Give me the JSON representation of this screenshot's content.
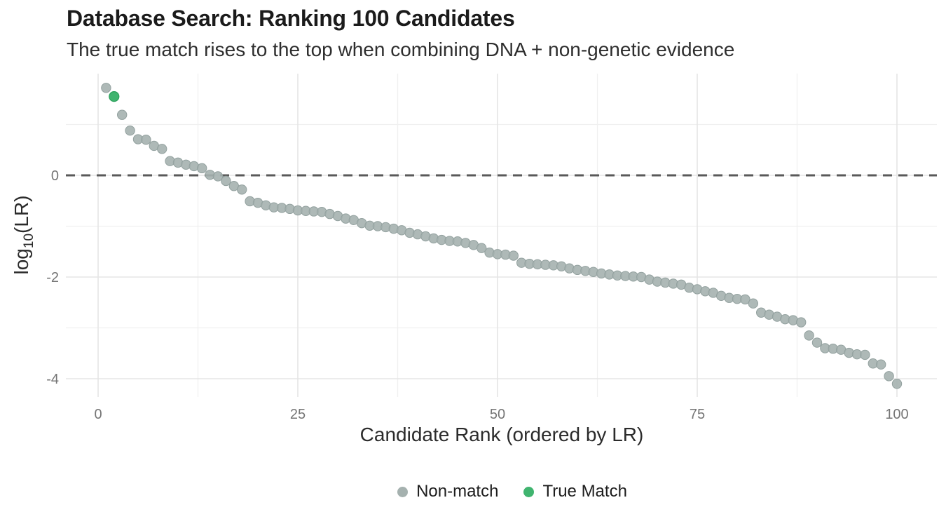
{
  "header": {
    "title": "Database Search: Ranking 100 Candidates",
    "subtitle": "The true match rises to the top when combining DNA + non-genetic evidence"
  },
  "chart_data": {
    "type": "scatter",
    "title": "Database Search: Ranking 100 Candidates",
    "subtitle": "The true match rises to the top when combining DNA + non-genetic evidence",
    "xlabel": "Candidate Rank (ordered by LR)",
    "ylabel": "log10(LR)",
    "ylabel_parts": {
      "base": "log",
      "sub": "10",
      "rest": "(LR)"
    },
    "x": {
      "start": 1,
      "end": 100,
      "step": 1
    },
    "xlim": [
      -4,
      105
    ],
    "ylim": [
      -4.36,
      2.0
    ],
    "x_ticks": [
      0,
      25,
      50,
      75,
      100
    ],
    "y_ticks": [
      0,
      -2,
      -4
    ],
    "x_minor_gridlines": [
      12.5,
      37.5,
      62.5,
      87.5
    ],
    "y_minor_gridlines": [
      1,
      -1,
      -3
    ],
    "grid": true,
    "reference_line_y": 0,
    "legend_position": "bottom-center",
    "y_values": [
      1.72,
      1.55,
      1.19,
      0.88,
      0.71,
      0.7,
      0.58,
      0.52,
      0.28,
      0.25,
      0.21,
      0.18,
      0.14,
      0.01,
      -0.02,
      -0.11,
      -0.21,
      -0.28,
      -0.51,
      -0.54,
      -0.59,
      -0.63,
      -0.64,
      -0.66,
      -0.69,
      -0.7,
      -0.71,
      -0.72,
      -0.76,
      -0.8,
      -0.85,
      -0.88,
      -0.94,
      -0.99,
      -1.0,
      -1.02,
      -1.05,
      -1.08,
      -1.13,
      -1.16,
      -1.2,
      -1.24,
      -1.27,
      -1.29,
      -1.3,
      -1.33,
      -1.37,
      -1.43,
      -1.52,
      -1.55,
      -1.56,
      -1.58,
      -1.72,
      -1.74,
      -1.75,
      -1.76,
      -1.77,
      -1.79,
      -1.83,
      -1.86,
      -1.88,
      -1.9,
      -1.93,
      -1.95,
      -1.97,
      -1.98,
      -1.99,
      -2.0,
      -2.05,
      -2.09,
      -2.11,
      -2.13,
      -2.15,
      -2.21,
      -2.24,
      -2.28,
      -2.31,
      -2.37,
      -2.41,
      -2.43,
      -2.44,
      -2.52,
      -2.7,
      -2.74,
      -2.78,
      -2.83,
      -2.85,
      -2.89,
      -3.15,
      -3.29,
      -3.4,
      -3.41,
      -3.43,
      -3.49,
      -3.52,
      -3.53,
      -3.7,
      -3.72,
      -3.95,
      -4.1
    ],
    "true_match": {
      "rank": 2,
      "value": 1.55
    },
    "series": [
      {
        "name": "Non-match",
        "color": "#a5b1af"
      },
      {
        "name": "True Match",
        "color": "#40b46f"
      }
    ],
    "colors": {
      "non_match_fill": "#a5b1af",
      "non_match_edge": "#93a19f",
      "true_match_fill": "#40b46f",
      "true_match_edge": "#2aa05b",
      "reference_line": "#595959",
      "grid_major": "#e5e5e5",
      "grid_minor": "#f0f0f0",
      "tick_label": "#757575",
      "axis_title": "#2b2b2b"
    }
  },
  "legend": {
    "items": [
      {
        "label": "Non-match",
        "color": "#a5b1af"
      },
      {
        "label": "True Match",
        "color": "#40b46f"
      }
    ]
  }
}
